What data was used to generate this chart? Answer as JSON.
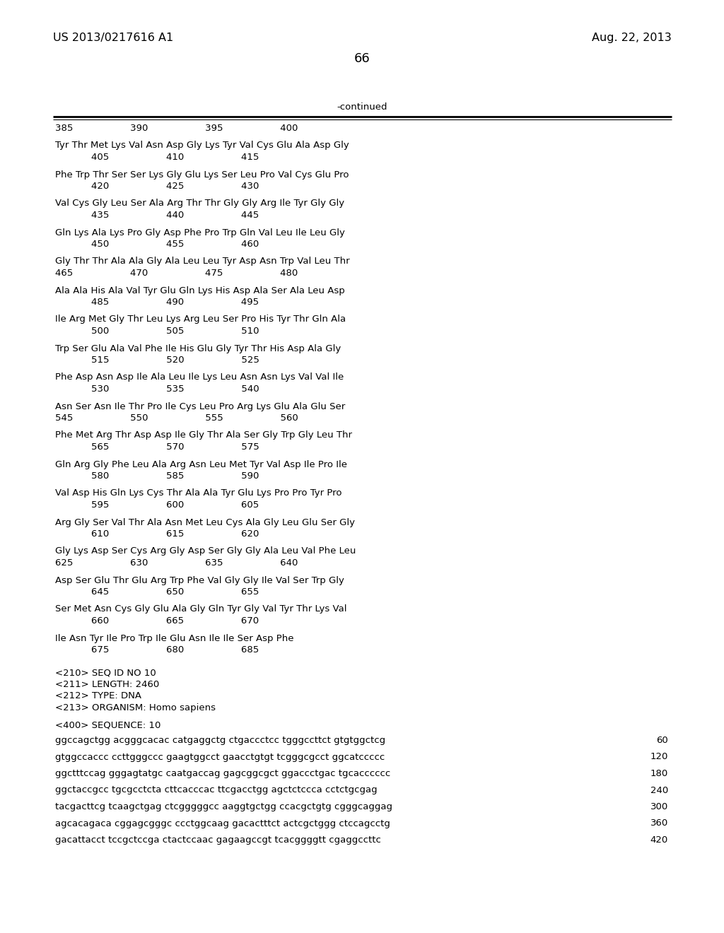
{
  "background_color": "#ffffff",
  "header_left": "US 2013/0217616 A1",
  "header_right": "Aug. 22, 2013",
  "page_number": "66",
  "continued_label": "-continued",
  "body_lines": [
    "385                   390                   395                   400",
    "",
    "Tyr Thr Met Lys Val Asn Asp Gly Lys Tyr Val Cys Glu Ala Asp Gly",
    "            405                   410                   415",
    "",
    "Phe Trp Thr Ser Ser Lys Gly Glu Lys Ser Leu Pro Val Cys Glu Pro",
    "            420                   425                   430",
    "",
    "Val Cys Gly Leu Ser Ala Arg Thr Thr Gly Gly Arg Ile Tyr Gly Gly",
    "            435                   440                   445",
    "",
    "Gln Lys Ala Lys Pro Gly Asp Phe Pro Trp Gln Val Leu Ile Leu Gly",
    "            450                   455                   460",
    "",
    "Gly Thr Thr Ala Ala Gly Ala Leu Leu Tyr Asp Asn Trp Val Leu Thr",
    "465                   470                   475                   480",
    "",
    "Ala Ala His Ala Val Tyr Glu Gln Lys His Asp Ala Ser Ala Leu Asp",
    "            485                   490                   495",
    "",
    "Ile Arg Met Gly Thr Leu Lys Arg Leu Ser Pro His Tyr Thr Gln Ala",
    "            500                   505                   510",
    "",
    "Trp Ser Glu Ala Val Phe Ile His Glu Gly Tyr Thr His Asp Ala Gly",
    "            515                   520                   525",
    "",
    "Phe Asp Asn Asp Ile Ala Leu Ile Lys Leu Asn Asn Lys Val Val Ile",
    "            530                   535                   540",
    "",
    "Asn Ser Asn Ile Thr Pro Ile Cys Leu Pro Arg Lys Glu Ala Glu Ser",
    "545                   550                   555                   560",
    "",
    "Phe Met Arg Thr Asp Asp Ile Gly Thr Ala Ser Gly Trp Gly Leu Thr",
    "            565                   570                   575",
    "",
    "Gln Arg Gly Phe Leu Ala Arg Asn Leu Met Tyr Val Asp Ile Pro Ile",
    "            580                   585                   590",
    "",
    "Val Asp His Gln Lys Cys Thr Ala Ala Tyr Glu Lys Pro Pro Tyr Pro",
    "            595                   600                   605",
    "",
    "Arg Gly Ser Val Thr Ala Asn Met Leu Cys Ala Gly Leu Glu Ser Gly",
    "            610                   615                   620",
    "",
    "Gly Lys Asp Ser Cys Arg Gly Asp Ser Gly Gly Ala Leu Val Phe Leu",
    "625                   630                   635                   640",
    "",
    "Asp Ser Glu Thr Glu Arg Trp Phe Val Gly Gly Ile Val Ser Trp Gly",
    "            645                   650                   655",
    "",
    "Ser Met Asn Cys Gly Glu Ala Gly Gln Tyr Gly Val Tyr Thr Lys Val",
    "            660                   665                   670",
    "",
    "Ile Asn Tyr Ile Pro Trp Ile Glu Asn Ile Ile Ser Asp Phe",
    "            675                   680                   685"
  ],
  "metadata_lines": [
    "",
    "<210> SEQ ID NO 10",
    "<211> LENGTH: 2460",
    "<212> TYPE: DNA",
    "<213> ORGANISM: Homo sapiens",
    "",
    "<400> SEQUENCE: 10"
  ],
  "dna_lines": [
    [
      "ggccagctgg acgggcacac catgaggctg ctgaccctcc tgggccttct gtgtggctcg",
      "60"
    ],
    [
      "gtggccaccc ccttgggccc gaagtggcct gaacctgtgt tcgggcgcct ggcatccccc",
      "120"
    ],
    [
      "ggctttccag gggagtatgc caatgaccag gagcggcgct ggaccctgac tgcacccccc",
      "180"
    ],
    [
      "ggctaccgcc tgcgcctcta cttcacccac ttcgacctgg agctctccca cctctgcgag",
      "240"
    ],
    [
      "tacgacttcg tcaagctgag ctcgggggcc aaggtgctgg ccacgctgtg cgggcaggag",
      "300"
    ],
    [
      "agcacagaca cggagcgggc ccctggcaag gacactttct actcgctggg ctccagcctg",
      "360"
    ],
    [
      "gacattacct tccgctccga ctactccaac gagaagccgt tcacggggtt cgaggccttc",
      "420"
    ]
  ],
  "font_size_header": 11.5,
  "font_size_body": 9.5,
  "font_size_page_num": 13
}
